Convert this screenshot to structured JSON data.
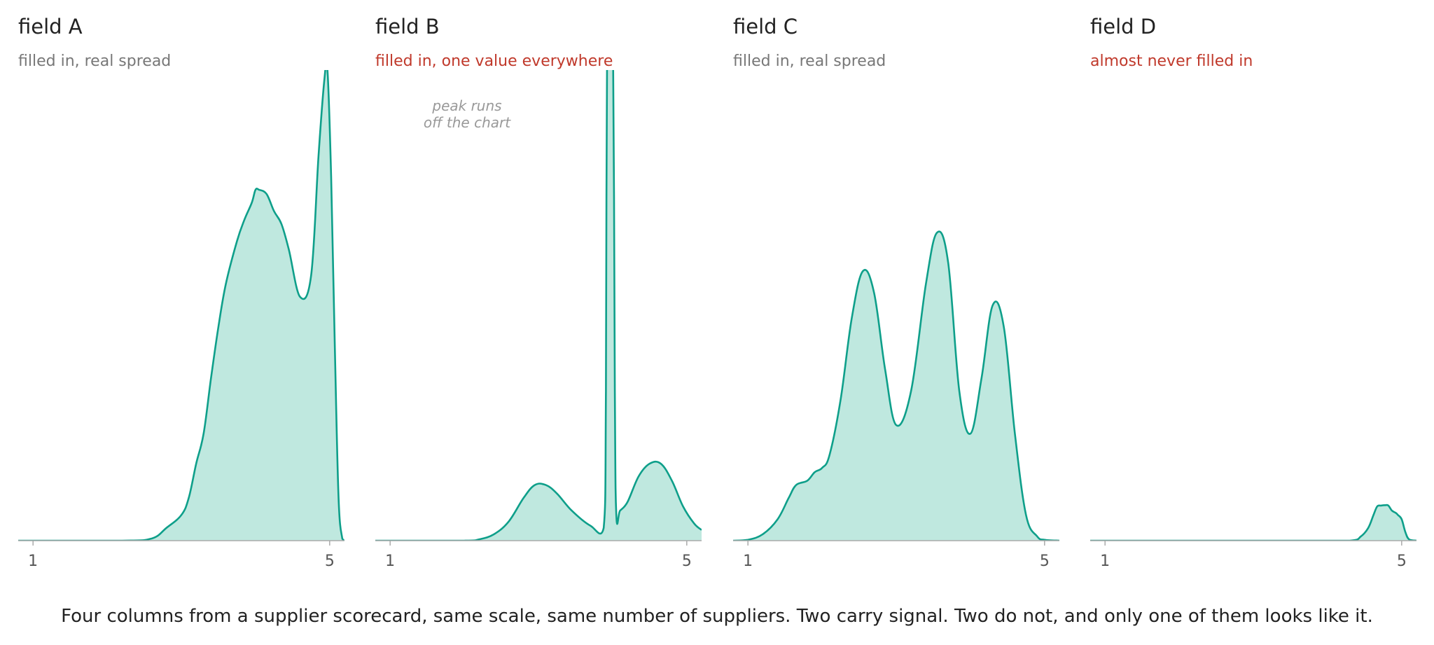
{
  "style": {
    "line_color": "#0e9f8a",
    "fill_color": "#bfe8df",
    "axis_color": "#aaaaaa",
    "normal_subtitle_color": "#777777",
    "warning_subtitle_color": "#c0392b"
  },
  "caption": "Four columns from a supplier scorecard, same scale, same number of suppliers. Two carry signal. Two do not, and only one of them looks like it.",
  "chart_data": [
    {
      "type": "area",
      "title": "field A",
      "subtitle": "filled in, real spread",
      "subtitle_status": "normal",
      "xlim": [
        0.8,
        5.2
      ],
      "ylim": [
        0,
        1.1
      ],
      "xticks": [
        1,
        5
      ],
      "xtick_labels": [
        "1",
        "5"
      ],
      "x": [
        0.8,
        2.2,
        2.6,
        2.8,
        3.0,
        3.1,
        3.2,
        3.3,
        3.4,
        3.5,
        3.6,
        3.75,
        3.85,
        3.95,
        4.0,
        4.05,
        4.15,
        4.25,
        4.35,
        4.45,
        4.6,
        4.75,
        4.85,
        4.93,
        4.97,
        5.02,
        5.07,
        5.12,
        5.17,
        5.2
      ],
      "y": [
        0,
        0,
        0.005,
        0.03,
        0.06,
        0.1,
        0.18,
        0.25,
        0.38,
        0.5,
        0.6,
        0.7,
        0.75,
        0.79,
        0.82,
        0.82,
        0.81,
        0.77,
        0.74,
        0.68,
        0.57,
        0.62,
        0.9,
        1.08,
        1.1,
        0.85,
        0.45,
        0.1,
        0.005,
        0
      ]
    },
    {
      "type": "area",
      "title": "field B",
      "subtitle": "filled in, one value everywhere",
      "subtitle_status": "warning",
      "annotation": [
        "peak runs",
        "off the chart"
      ],
      "xlim": [
        0.8,
        5.2
      ],
      "ylim": [
        0,
        1.1
      ],
      "xticks": [
        1,
        5
      ],
      "xtick_labels": [
        "1",
        "5"
      ],
      "x": [
        0.8,
        2.0,
        2.2,
        2.4,
        2.6,
        2.8,
        2.95,
        3.1,
        3.25,
        3.45,
        3.7,
        3.88,
        3.91,
        3.93,
        4.0,
        4.03,
        4.05,
        4.1,
        4.2,
        4.35,
        4.5,
        4.65,
        4.8,
        4.95,
        5.1,
        5.2
      ],
      "y": [
        0,
        0,
        0.003,
        0.015,
        0.045,
        0.1,
        0.13,
        0.13,
        0.11,
        0.07,
        0.035,
        0.03,
        0.35,
        1.3,
        1.3,
        0.35,
        0.06,
        0.07,
        0.09,
        0.15,
        0.18,
        0.18,
        0.14,
        0.08,
        0.04,
        0.025
      ]
    },
    {
      "type": "area",
      "title": "field C",
      "subtitle": "filled in, real spread",
      "subtitle_status": "normal",
      "xlim": [
        0.8,
        5.2
      ],
      "ylim": [
        0,
        1.1
      ],
      "xticks": [
        1,
        5
      ],
      "xtick_labels": [
        "1",
        "5"
      ],
      "x": [
        0.8,
        1.0,
        1.2,
        1.4,
        1.55,
        1.65,
        1.8,
        1.9,
        2.0,
        2.1,
        2.25,
        2.4,
        2.55,
        2.7,
        2.85,
        3.0,
        3.2,
        3.4,
        3.55,
        3.7,
        3.85,
        4.0,
        4.15,
        4.3,
        4.45,
        4.6,
        4.75,
        4.9,
        5.0,
        5.2
      ],
      "y": [
        0,
        0.002,
        0.015,
        0.05,
        0.1,
        0.13,
        0.14,
        0.16,
        0.17,
        0.2,
        0.33,
        0.52,
        0.63,
        0.58,
        0.4,
        0.27,
        0.35,
        0.6,
        0.72,
        0.65,
        0.35,
        0.25,
        0.38,
        0.55,
        0.5,
        0.25,
        0.06,
        0.01,
        0.002,
        0
      ]
    },
    {
      "type": "area",
      "title": "field D",
      "subtitle": "almost never filled in",
      "subtitle_status": "warning",
      "xlim": [
        0.8,
        5.2
      ],
      "ylim": [
        0,
        1.1
      ],
      "xticks": [
        1,
        5
      ],
      "xtick_labels": [
        "1",
        "5"
      ],
      "x": [
        0.8,
        4.3,
        4.45,
        4.55,
        4.62,
        4.67,
        4.72,
        4.78,
        4.82,
        4.87,
        4.92,
        4.95,
        5.0,
        5.05,
        5.1,
        5.2
      ],
      "y": [
        0,
        0,
        0.01,
        0.03,
        0.06,
        0.08,
        0.082,
        0.083,
        0.082,
        0.07,
        0.065,
        0.06,
        0.05,
        0.02,
        0.003,
        0
      ]
    }
  ]
}
